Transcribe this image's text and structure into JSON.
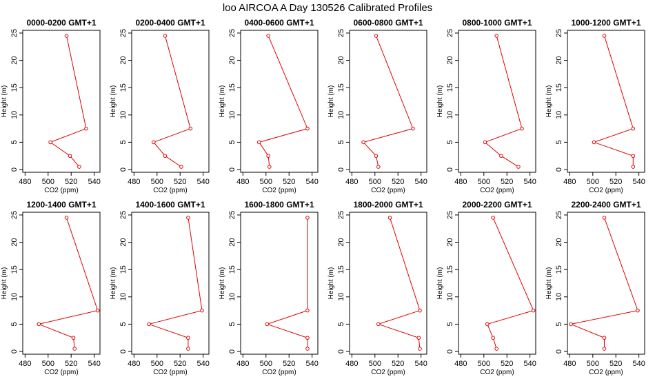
{
  "figure": {
    "title": "loo AIRCOA A  Day 130526  Calibrated Profiles"
  },
  "style": {
    "line_color": "#e00000",
    "axis_color": "#000000",
    "background": "#ffffff"
  },
  "chart_data": [
    {
      "type": "line",
      "title": "0000-0200 GMT+1",
      "xlabel": "CO2 (ppm)",
      "ylabel": "Height (m)",
      "xlim": [
        478,
        545
      ],
      "ylim": [
        -0.5,
        25.5
      ],
      "xticks": [
        480,
        500,
        520,
        540
      ],
      "yticks": [
        0,
        5,
        10,
        15,
        20,
        25
      ],
      "series": [
        {
          "x": [
            527,
            519,
            502,
            533,
            516
          ],
          "y": [
            0.5,
            2.5,
            5,
            7.5,
            24.5
          ]
        }
      ]
    },
    {
      "type": "line",
      "title": "0200-0400 GMT+1",
      "xlabel": "CO2 (ppm)",
      "ylabel": "Height (m)",
      "xlim": [
        478,
        545
      ],
      "ylim": [
        -0.5,
        25.5
      ],
      "xticks": [
        480,
        500,
        520,
        540
      ],
      "yticks": [
        0,
        5,
        10,
        15,
        20,
        25
      ],
      "series": [
        {
          "x": [
            521,
            507,
            497,
            529,
            507
          ],
          "y": [
            0.5,
            2.5,
            5,
            7.5,
            24.5
          ]
        }
      ]
    },
    {
      "type": "line",
      "title": "0400-0600 GMT+1",
      "xlabel": "CO2 (ppm)",
      "ylabel": "Height (m)",
      "xlim": [
        478,
        545
      ],
      "ylim": [
        -0.5,
        25.5
      ],
      "xticks": [
        480,
        500,
        520,
        540
      ],
      "yticks": [
        0,
        5,
        10,
        15,
        20,
        25
      ],
      "series": [
        {
          "x": [
            503,
            502,
            494,
            536,
            502
          ],
          "y": [
            0.5,
            2.5,
            5,
            7.5,
            24.5
          ]
        }
      ]
    },
    {
      "type": "line",
      "title": "0600-0800 GMT+1",
      "xlabel": "CO2 (ppm)",
      "ylabel": "Height (m)",
      "xlim": [
        478,
        545
      ],
      "ylim": [
        -0.5,
        25.5
      ],
      "xticks": [
        480,
        500,
        520,
        540
      ],
      "yticks": [
        0,
        5,
        10,
        15,
        20,
        25
      ],
      "series": [
        {
          "x": [
            503,
            501,
            490,
            533,
            501
          ],
          "y": [
            0.5,
            2.5,
            5,
            7.5,
            24.5
          ]
        }
      ]
    },
    {
      "type": "line",
      "title": "0800-1000 GMT+1",
      "xlabel": "CO2 (ppm)",
      "ylabel": "Height (m)",
      "xlim": [
        478,
        545
      ],
      "ylim": [
        -0.5,
        25.5
      ],
      "xticks": [
        480,
        500,
        520,
        540
      ],
      "yticks": [
        0,
        5,
        10,
        15,
        20,
        25
      ],
      "series": [
        {
          "x": [
            530,
            515,
            501,
            533,
            511
          ],
          "y": [
            0.5,
            2.5,
            5,
            7.5,
            24.5
          ]
        }
      ]
    },
    {
      "type": "line",
      "title": "1000-1200 GMT+1",
      "xlabel": "CO2 (ppm)",
      "ylabel": "Height (m)",
      "xlim": [
        478,
        545
      ],
      "ylim": [
        -0.5,
        25.5
      ],
      "xticks": [
        480,
        500,
        520,
        540
      ],
      "yticks": [
        0,
        5,
        10,
        15,
        20,
        25
      ],
      "series": [
        {
          "x": [
            535,
            535,
            501,
            535,
            510
          ],
          "y": [
            0.5,
            2.5,
            5,
            7.5,
            24.5
          ]
        }
      ]
    },
    {
      "type": "line",
      "title": "1200-1400 GMT+1",
      "xlabel": "CO2 (ppm)",
      "ylabel": "Height (m)",
      "xlim": [
        478,
        545
      ],
      "ylim": [
        -0.5,
        25.5
      ],
      "xticks": [
        480,
        500,
        520,
        540
      ],
      "yticks": [
        0,
        5,
        10,
        15,
        20,
        25
      ],
      "series": [
        {
          "x": [
            523,
            522,
            492,
            543,
            516
          ],
          "y": [
            0.5,
            2.5,
            5,
            7.5,
            24.5
          ]
        }
      ]
    },
    {
      "type": "line",
      "title": "1400-1600 GMT+1",
      "xlabel": "CO2 (ppm)",
      "ylabel": "Height (m)",
      "xlim": [
        478,
        545
      ],
      "ylim": [
        -0.5,
        25.5
      ],
      "xticks": [
        480,
        500,
        520,
        540
      ],
      "yticks": [
        0,
        5,
        10,
        15,
        20,
        25
      ],
      "series": [
        {
          "x": [
            527,
            527,
            493,
            539,
            527
          ],
          "y": [
            0.5,
            2.5,
            5,
            7.5,
            24.5
          ]
        }
      ]
    },
    {
      "type": "line",
      "title": "1600-1800 GMT+1",
      "xlabel": "CO2 (ppm)",
      "ylabel": "Height (m)",
      "xlim": [
        478,
        545
      ],
      "ylim": [
        -0.5,
        25.5
      ],
      "xticks": [
        480,
        500,
        520,
        540
      ],
      "yticks": [
        0,
        5,
        10,
        15,
        20,
        25
      ],
      "series": [
        {
          "x": [
            536,
            536,
            501,
            536,
            536
          ],
          "y": [
            0.5,
            2.5,
            5,
            7.5,
            24.5
          ]
        }
      ]
    },
    {
      "type": "line",
      "title": "1800-2000 GMT+1",
      "xlabel": "CO2 (ppm)",
      "ylabel": "Height (m)",
      "xlim": [
        478,
        545
      ],
      "ylim": [
        -0.5,
        25.5
      ],
      "xticks": [
        480,
        500,
        520,
        540
      ],
      "yticks": [
        0,
        5,
        10,
        15,
        20,
        25
      ],
      "series": [
        {
          "x": [
            539,
            538,
            503,
            539,
            513
          ],
          "y": [
            0.5,
            2.5,
            5,
            7.5,
            24.5
          ]
        }
      ]
    },
    {
      "type": "line",
      "title": "2000-2200 GMT+1",
      "xlabel": "CO2 (ppm)",
      "ylabel": "Height (m)",
      "xlim": [
        478,
        545
      ],
      "ylim": [
        -0.5,
        25.5
      ],
      "xticks": [
        480,
        500,
        520,
        540
      ],
      "yticks": [
        0,
        5,
        10,
        15,
        20,
        25
      ],
      "series": [
        {
          "x": [
            511,
            508,
            503,
            543,
            508
          ],
          "y": [
            0.5,
            2.5,
            5,
            7.5,
            24.5
          ]
        }
      ]
    },
    {
      "type": "line",
      "title": "2200-2400 GMT+1",
      "xlabel": "CO2 (ppm)",
      "ylabel": "Height (m)",
      "xlim": [
        478,
        545
      ],
      "ylim": [
        -0.5,
        25.5
      ],
      "xticks": [
        480,
        500,
        520,
        540
      ],
      "yticks": [
        0,
        5,
        10,
        15,
        20,
        25
      ],
      "series": [
        {
          "x": [
            510,
            510,
            481,
            539,
            510
          ],
          "y": [
            0.5,
            2.5,
            5,
            7.5,
            24.5
          ]
        }
      ]
    }
  ]
}
